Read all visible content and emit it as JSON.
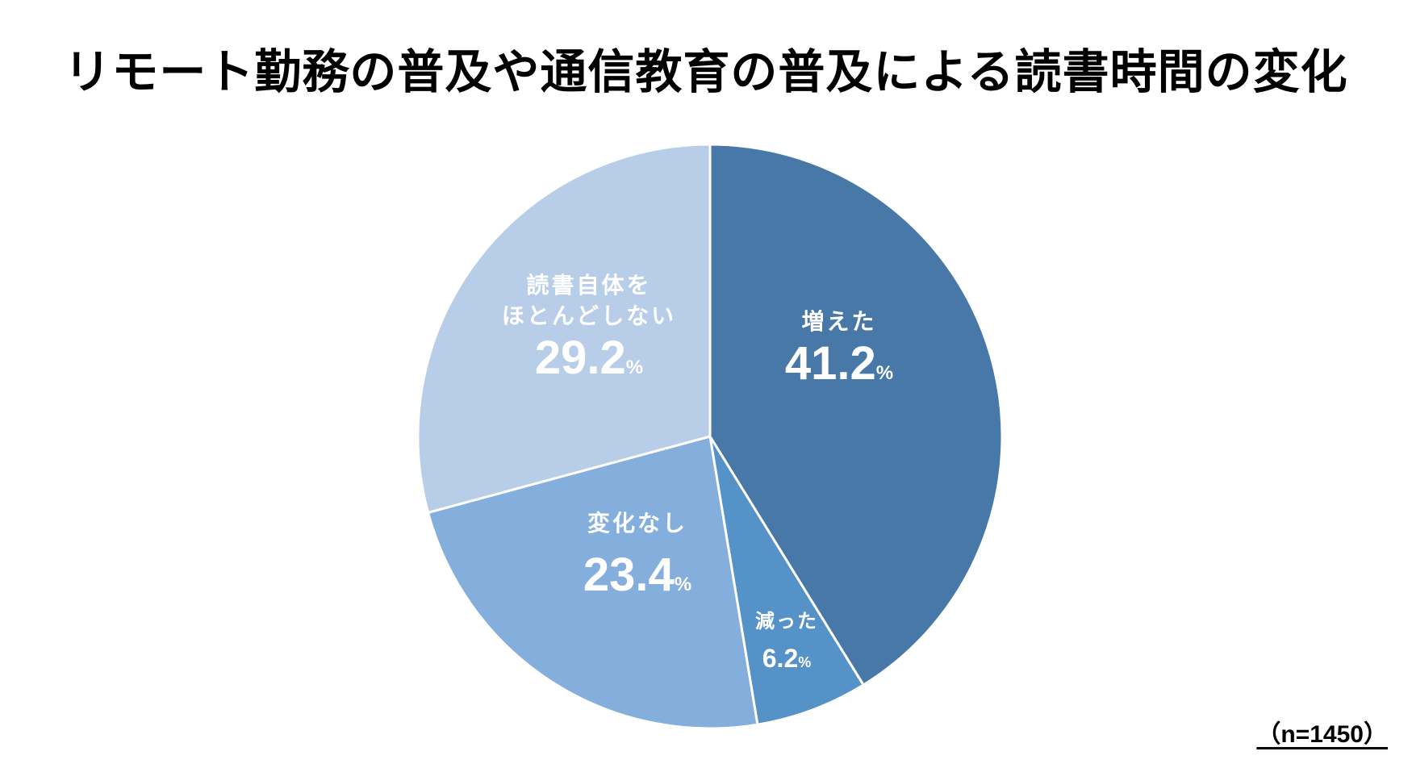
{
  "chart_data": {
    "type": "pie",
    "title": "リモート勤務の普及や通信教育の普及による読書時間の変化",
    "categories": [
      "増えた",
      "減った",
      "変化なし",
      "読書自体をほとんどしない"
    ],
    "values": [
      41.2,
      6.2,
      23.4,
      29.2
    ],
    "unit": "%",
    "colors": [
      "#4778A8",
      "#5592C8",
      "#84AEDB",
      "#B8CDE7"
    ],
    "start_angle": "12 o'clock, clockwise",
    "sample_size": "n=1450",
    "legend": "none (labels inside slices)"
  },
  "title": "リモート勤務の普及や通信教育の普及による読書時間の変化",
  "labels": {
    "increased": {
      "name": "増えた",
      "value": "41.2",
      "unit": "%"
    },
    "decreased": {
      "name": "減った",
      "value": "6.2",
      "unit": "%"
    },
    "no_change": {
      "name": "変化なし",
      "value": "23.4",
      "unit": "%"
    },
    "no_reading": {
      "name1": "読書自体を",
      "name2": "ほとんどしない",
      "value": "29.2",
      "unit": "%"
    }
  },
  "note": "（n=1450）"
}
